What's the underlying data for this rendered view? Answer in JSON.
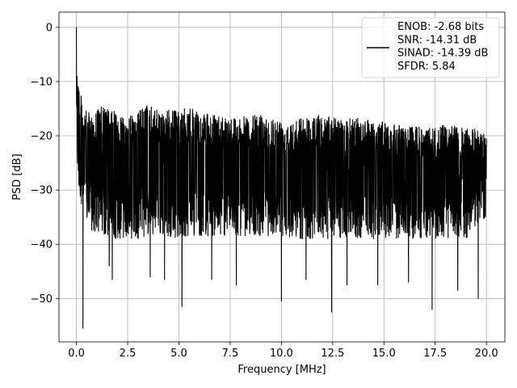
{
  "chart_data": {
    "type": "line",
    "title": "",
    "xlabel": "Frequency [MHz]",
    "ylabel": "PSD [dB]",
    "xlim": [
      -0.85,
      20.9
    ],
    "ylim": [
      -58,
      2.8
    ],
    "x_ticks": [
      0.0,
      2.5,
      5.0,
      7.5,
      10.0,
      12.5,
      15.0,
      17.5,
      20.0
    ],
    "x_tick_labels": [
      "0.0",
      "2.5",
      "5.0",
      "7.5",
      "10.0",
      "12.5",
      "15.0",
      "17.5",
      "20.0"
    ],
    "y_ticks": [
      0,
      -10,
      -20,
      -30,
      -40,
      -50
    ],
    "y_tick_labels": [
      "0",
      "−10",
      "−20",
      "−30",
      "−40",
      "−50"
    ],
    "grid": true,
    "legend_position": "top-right",
    "series": [
      {
        "name": "ENOB: -2.68 bits\nSNR: -14.31 dB\nSINAD: -14.39 dB\nSFDR: 5.84",
        "color": "#000000",
        "upper_envelope": {
          "x": [
            0.0,
            0.05,
            0.1,
            0.2,
            0.35,
            0.5,
            0.8,
            1.0,
            1.3,
            1.6,
            2.0,
            2.5,
            3.0,
            3.5,
            4.0,
            4.5,
            5.0,
            5.5,
            6.0,
            7.0,
            8.0,
            9.0,
            10.0,
            11.0,
            12.0,
            12.5,
            13.0,
            14.0,
            15.0,
            16.0,
            17.0,
            18.0,
            19.0,
            20.0
          ],
          "y": [
            0.0,
            -6.0,
            -9.0,
            -12.0,
            -14.5,
            -15.5,
            -16.0,
            -15.0,
            -14.5,
            -15.0,
            -15.5,
            -16.5,
            -15.5,
            -14.0,
            -15.5,
            -15.0,
            -15.5,
            -14.5,
            -16.0,
            -16.0,
            -16.5,
            -16.0,
            -17.0,
            -16.5,
            -16.0,
            -16.5,
            -17.0,
            -16.5,
            -17.5,
            -18.0,
            -18.5,
            -18.0,
            -18.5,
            -19.0
          ]
        },
        "lower_envelope": {
          "x": [
            0.0,
            0.05,
            0.1,
            0.2,
            0.35,
            0.5,
            0.8,
            1.0,
            1.3,
            1.6,
            2.0,
            2.5,
            3.0,
            3.5,
            4.0,
            4.5,
            5.0,
            5.5,
            6.0,
            7.0,
            8.0,
            9.0,
            10.0,
            11.0,
            12.0,
            12.5,
            13.0,
            14.0,
            15.0,
            16.0,
            17.0,
            18.0,
            19.0,
            20.0
          ],
          "y": [
            -15.0,
            -26.0,
            -30.0,
            -32.0,
            -34.0,
            -36.0,
            -38.0,
            -38.5,
            -38.5,
            -39.0,
            -39.0,
            -39.0,
            -39.0,
            -38.5,
            -38.5,
            -38.5,
            -39.0,
            -38.5,
            -38.5,
            -38.5,
            -38.5,
            -38.5,
            -38.5,
            -39.0,
            -39.0,
            -39.0,
            -39.0,
            -39.0,
            -39.0,
            -39.0,
            -39.0,
            -39.0,
            -39.0,
            -35.0
          ]
        },
        "notable_dips": {
          "x": [
            0.32,
            1.6,
            1.75,
            3.6,
            4.3,
            5.15,
            6.6,
            7.8,
            10.0,
            11.2,
            12.45,
            13.2,
            14.7,
            16.2,
            17.35,
            18.6,
            19.6
          ],
          "y": [
            -55.5,
            -44.0,
            -46.5,
            -46.0,
            -46.5,
            -51.5,
            -46.5,
            -47.5,
            -50.5,
            -46.5,
            -52.5,
            -47.5,
            -47.5,
            -47.0,
            -52.0,
            -48.5,
            -50.0
          ]
        }
      }
    ]
  }
}
